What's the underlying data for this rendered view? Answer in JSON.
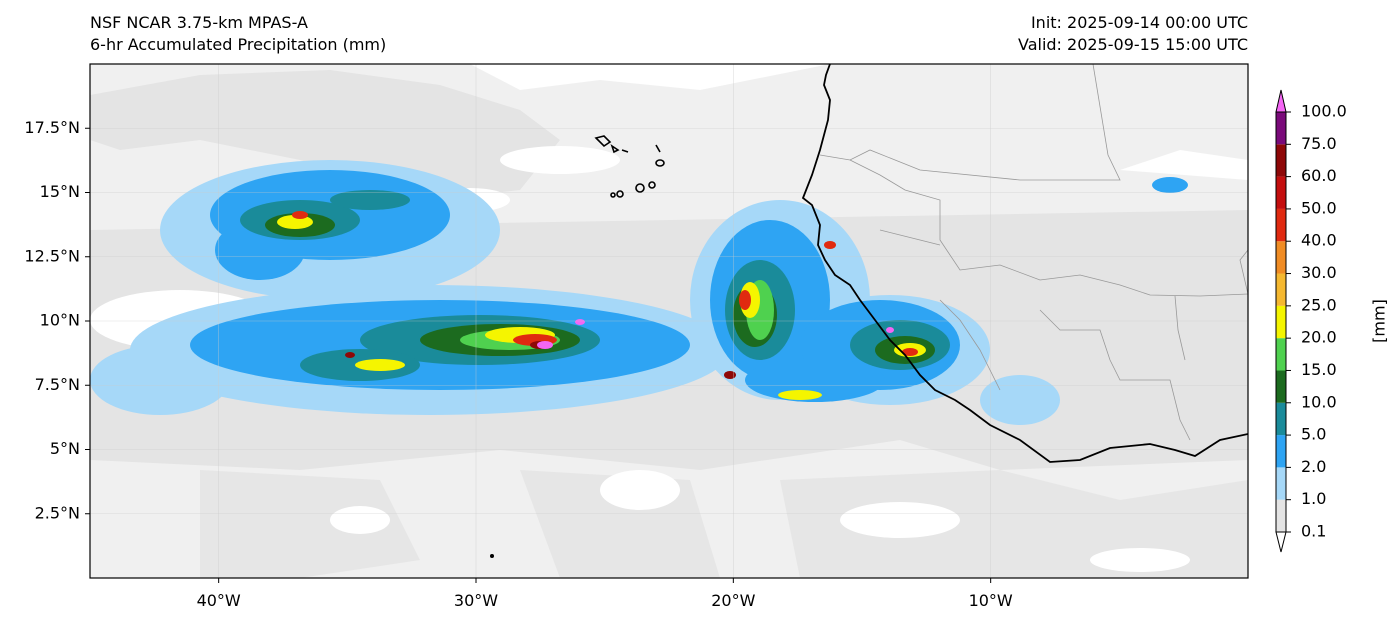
{
  "header": {
    "model": "NSF NCAR 3.75-km MPAS-A",
    "field": "6-hr Accumulated Precipitation (mm)",
    "init": "Init: 2025-09-14 00:00 UTC",
    "valid": "Valid: 2025-09-15 15:00 UTC"
  },
  "map": {
    "lon_range": [
      -45,
      0
    ],
    "lat_range": [
      0,
      20
    ],
    "x_ticks": [
      {
        "lon": -40,
        "label": "40°W"
      },
      {
        "lon": -30,
        "label": "30°W"
      },
      {
        "lon": -20,
        "label": "20°W"
      },
      {
        "lon": -10,
        "label": "10°W"
      }
    ],
    "y_ticks": [
      {
        "lat": 2.5,
        "label": "2.5°N"
      },
      {
        "lat": 5,
        "label": "5°N"
      },
      {
        "lat": 7.5,
        "label": "7.5°N"
      },
      {
        "lat": 10,
        "label": "10°N"
      },
      {
        "lat": 12.5,
        "label": "12.5°N"
      },
      {
        "lat": 15,
        "label": "15°N"
      },
      {
        "lat": 17.5,
        "label": "17.5°N"
      }
    ],
    "gridlines": true
  },
  "colorbar": {
    "unit_label": "[mm]",
    "extend": "both",
    "levels": [
      {
        "label": "0.1",
        "color": "#e4e4e4"
      },
      {
        "label": "1.0",
        "color": "#a6d8f8"
      },
      {
        "label": "2.0",
        "color": "#2ea4f3"
      },
      {
        "label": "5.0",
        "color": "#1a8b9a"
      },
      {
        "label": "10.0",
        "color": "#1c6b1f"
      },
      {
        "label": "15.0",
        "color": "#4fd14f"
      },
      {
        "label": "20.0",
        "color": "#f5f500"
      },
      {
        "label": "25.0",
        "color": "#f5b830"
      },
      {
        "label": "30.0",
        "color": "#f08c24"
      },
      {
        "label": "40.0",
        "color": "#e02a10"
      },
      {
        "label": "50.0",
        "color": "#c40e0e"
      },
      {
        "label": "60.0",
        "color": "#8e0808"
      },
      {
        "label": "75.0",
        "color": "#7a0a7a"
      },
      {
        "label": "100.0",
        "color": "#f466f4"
      }
    ],
    "over_color": "#f8a0f8",
    "under_color": "#ffffff"
  }
}
